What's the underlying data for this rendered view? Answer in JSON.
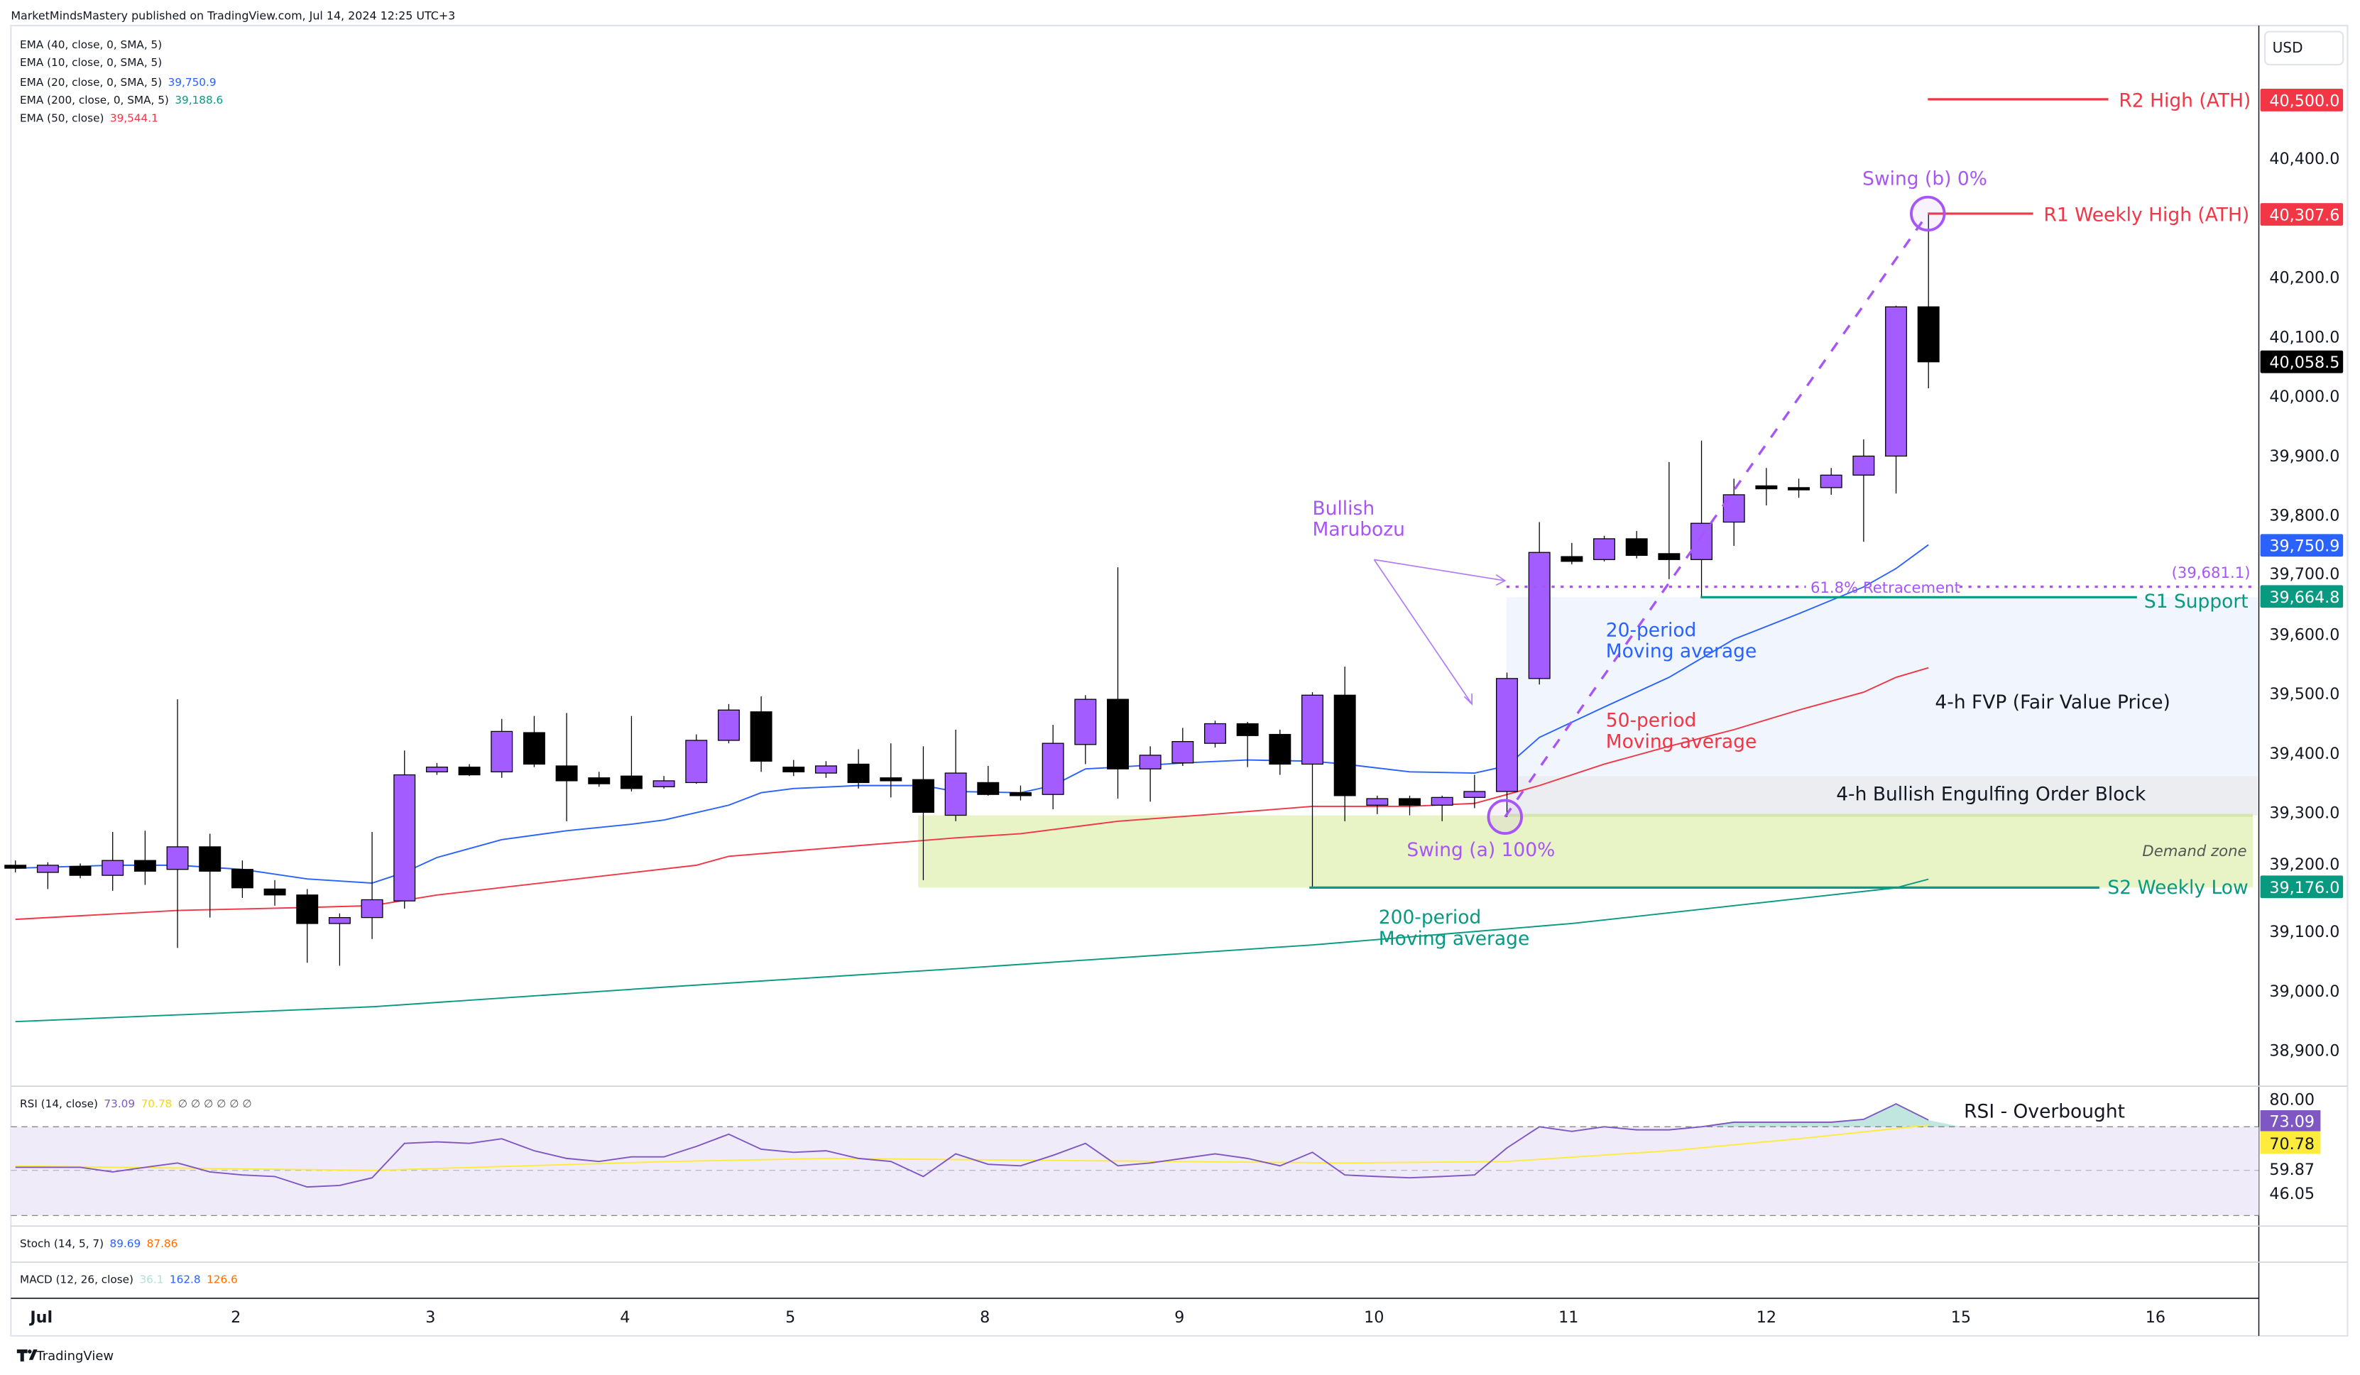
{
  "header": {
    "published": "MarketMindsMastery published on TradingView.com, Jul 14, 2024 12:25 UTC+3"
  },
  "legend": {
    "ema40": "EMA (40, close, 0, SMA, 5)",
    "ema10": "EMA (10, close, 0, SMA, 5)",
    "ema20": "EMA (20, close, 0, SMA, 5)",
    "ema20_value": "39,750.9",
    "ema200": "EMA (200, close, 0, SMA, 5)",
    "ema200_value": "39,188.6",
    "ema50": "EMA (50, close)",
    "ema50_value": "39,544.1"
  },
  "colors": {
    "up": "#a25cff",
    "down": "#000000",
    "ema20": "#2962ff",
    "ema50": "#f23645",
    "ema200": "#089981",
    "annotation": "#a855f7",
    "rsi": "#7e57c2",
    "rsi_ma": "#ffeb3b"
  },
  "price_axis": {
    "currency": "USD",
    "ticks": [
      "40,400.0",
      "40,200.0",
      "40,100.0",
      "40,000.0",
      "39,900.0",
      "39,800.0",
      "39,700.0",
      "39,600.0",
      "39,500.0",
      "39,400.0",
      "39,300.0",
      "39,200.0",
      "39,100.0",
      "39,000.0",
      "38,900.0"
    ],
    "tags": {
      "r2": "40,500.0",
      "r1": "40,307.6",
      "last": "40,058.5",
      "ema20": "39,750.9",
      "s1": "39,664.8",
      "s2": "39,176.0"
    }
  },
  "annotations": {
    "r2": "R2 High (ATH)",
    "r1": "R1 Weekly High (ATH)",
    "swing_b": "Swing (b) 0%",
    "swing_a": "Swing (a) 100%",
    "retracement": "61.8% Retracement",
    "retracement_value": "(39,681.1)",
    "s1": "S1 Support",
    "fvp": "4-h FVP (Fair Value Price)",
    "order_block": "4-h Bullish Engulfing Order Block",
    "demand_zone": "Demand zone",
    "s2": "S2 Weekly Low",
    "marubozu_1": "Bullish",
    "marubozu_2": "Marubozu",
    "ma20_1": "20-period",
    "ma20_2": "Moving average",
    "ma50_1": "50-period",
    "ma50_2": "Moving average",
    "ma200_1": "200-period",
    "ma200_2": "Moving average",
    "rsi_overbought": "RSI - Overbought"
  },
  "rsi_pane": {
    "label": "RSI (14, close)",
    "value": "73.09",
    "ma_value": "70.78",
    "extra": "∅ ∅ ∅ ∅ ∅ ∅",
    "axis": [
      "80.00",
      "59.87",
      "46.05"
    ],
    "tag_rsi": "73.09",
    "tag_ma": "70.78"
  },
  "stoch_pane": {
    "label": "Stoch (14, 5, 7)",
    "k": "89.69",
    "d": "87.86"
  },
  "macd_pane": {
    "label": "MACD (12, 26, close)",
    "hist": "36.1",
    "macd": "162.8",
    "signal": "126.6"
  },
  "footer": {
    "brand": "TradingView"
  },
  "chart_data": {
    "type": "candlestick",
    "title": "",
    "ylim": [
      38850,
      40560
    ],
    "time_ticks": [
      {
        "label": "Jul",
        "index": 0.8
      },
      {
        "label": "2",
        "index": 6.8
      },
      {
        "label": "3",
        "index": 12.8
      },
      {
        "label": "4",
        "index": 18.8
      },
      {
        "label": "5",
        "index": 23.9
      },
      {
        "label": "8",
        "index": 29.9
      },
      {
        "label": "9",
        "index": 35.9
      },
      {
        "label": "10",
        "index": 41.9
      },
      {
        "label": "11",
        "index": 47.9
      },
      {
        "label": "12",
        "index": 54.0
      },
      {
        "label": "15",
        "index": 60.0
      },
      {
        "label": "16",
        "index": 66.0
      }
    ],
    "candles_ohlc": [
      [
        39212,
        39220,
        39200,
        39207
      ],
      [
        39200,
        39217,
        39172,
        39212
      ],
      [
        39210,
        39215,
        39190,
        39195
      ],
      [
        39195,
        39268,
        39169,
        39220
      ],
      [
        39220,
        39270,
        39179,
        39202
      ],
      [
        39205,
        39491,
        39073,
        39243
      ],
      [
        39243,
        39265,
        39124,
        39202
      ],
      [
        39205,
        39220,
        39157,
        39174
      ],
      [
        39172,
        39187,
        39144,
        39162
      ],
      [
        39162,
        39172,
        39048,
        39114
      ],
      [
        39114,
        39131,
        39043,
        39124
      ],
      [
        39124,
        39268,
        39088,
        39154
      ],
      [
        39152,
        39405,
        39139,
        39364
      ],
      [
        39369,
        39384,
        39364,
        39377
      ],
      [
        39377,
        39382,
        39362,
        39364
      ],
      [
        39369,
        39458,
        39359,
        39437
      ],
      [
        39435,
        39463,
        39377,
        39382
      ],
      [
        39379,
        39468,
        39286,
        39354
      ],
      [
        39359,
        39369,
        39344,
        39349
      ],
      [
        39362,
        39463,
        39336,
        39341
      ],
      [
        39344,
        39362,
        39341,
        39354
      ],
      [
        39351,
        39432,
        39349,
        39422
      ],
      [
        39422,
        39483,
        39417,
        39473
      ],
      [
        39470,
        39496,
        39369,
        39387
      ],
      [
        39377,
        39389,
        39362,
        39369
      ],
      [
        39367,
        39387,
        39359,
        39379
      ],
      [
        39382,
        39407,
        39341,
        39351
      ],
      [
        39359,
        39417,
        39326,
        39354
      ],
      [
        39356,
        39412,
        39187,
        39301
      ],
      [
        39296,
        39440,
        39286,
        39367
      ],
      [
        39351,
        39379,
        39329,
        39331
      ],
      [
        39334,
        39346,
        39321,
        39329
      ],
      [
        39331,
        39448,
        39306,
        39417
      ],
      [
        39415,
        39498,
        39382,
        39491
      ],
      [
        39491,
        39713,
        39324,
        39374
      ],
      [
        39374,
        39412,
        39319,
        39397
      ],
      [
        39384,
        39443,
        39379,
        39420
      ],
      [
        39417,
        39455,
        39410,
        39450
      ],
      [
        39450,
        39453,
        39377,
        39430
      ],
      [
        39432,
        39440,
        39364,
        39382
      ],
      [
        39382,
        39503,
        39174,
        39498
      ],
      [
        39498,
        39546,
        39286,
        39329
      ],
      [
        39313,
        39329,
        39298,
        39324
      ],
      [
        39324,
        39329,
        39296,
        39313
      ],
      [
        39313,
        39329,
        39286,
        39326
      ],
      [
        39326,
        39364,
        39308,
        39336
      ],
      [
        39336,
        39536,
        39293,
        39526
      ],
      [
        39526,
        39789,
        39516,
        39738
      ],
      [
        39731,
        39754,
        39718,
        39723
      ],
      [
        39726,
        39766,
        39723,
        39761
      ],
      [
        39761,
        39774,
        39728,
        39733
      ],
      [
        39736,
        39890,
        39693,
        39726
      ],
      [
        39726,
        39926,
        39663,
        39787
      ],
      [
        39789,
        39862,
        39749,
        39835
      ],
      [
        39850,
        39880,
        39817,
        39845
      ],
      [
        39847,
        39862,
        39830,
        39845
      ],
      [
        39847,
        39880,
        39835,
        39868
      ],
      [
        39868,
        39928,
        39756,
        39900
      ],
      [
        39900,
        40153,
        39837,
        40151
      ],
      [
        40151,
        40307.6,
        40014,
        40058.5
      ]
    ],
    "series": [
      {
        "name": "EMA 20",
        "points": [
          [
            0,
            39207
          ],
          [
            3,
            39212
          ],
          [
            5,
            39212
          ],
          [
            7,
            39205
          ],
          [
            9,
            39189
          ],
          [
            11,
            39182
          ],
          [
            12,
            39200
          ],
          [
            13,
            39225
          ],
          [
            15,
            39255
          ],
          [
            17,
            39270
          ],
          [
            19,
            39281
          ],
          [
            20,
            39288
          ],
          [
            22,
            39313
          ],
          [
            23,
            39334
          ],
          [
            24,
            39341
          ],
          [
            26,
            39346
          ],
          [
            28,
            39346
          ],
          [
            29,
            39336
          ],
          [
            31,
            39334
          ],
          [
            32,
            39346
          ],
          [
            33,
            39374
          ],
          [
            34,
            39377
          ],
          [
            36,
            39384
          ],
          [
            38,
            39389
          ],
          [
            40,
            39387
          ],
          [
            41,
            39382
          ],
          [
            43,
            39369
          ],
          [
            45,
            39367
          ],
          [
            46,
            39379
          ],
          [
            47,
            39427
          ],
          [
            49,
            39478
          ],
          [
            51,
            39528
          ],
          [
            53,
            39592
          ],
          [
            55,
            39635
          ],
          [
            57,
            39680
          ],
          [
            58,
            39711
          ],
          [
            59,
            39750.9
          ]
        ]
      },
      {
        "name": "EMA 50",
        "points": [
          [
            0,
            39121
          ],
          [
            5,
            39136
          ],
          [
            9,
            39141
          ],
          [
            11,
            39144
          ],
          [
            13,
            39162
          ],
          [
            17,
            39187
          ],
          [
            21,
            39212
          ],
          [
            22,
            39227
          ],
          [
            26,
            39245
          ],
          [
            29,
            39258
          ],
          [
            31,
            39265
          ],
          [
            34,
            39286
          ],
          [
            37,
            39298
          ],
          [
            40,
            39311
          ],
          [
            43,
            39311
          ],
          [
            45,
            39316
          ],
          [
            47,
            39346
          ],
          [
            49,
            39382
          ],
          [
            51,
            39412
          ],
          [
            53,
            39440
          ],
          [
            55,
            39473
          ],
          [
            57,
            39503
          ],
          [
            58,
            39528
          ],
          [
            59,
            39544.1
          ]
        ]
      },
      {
        "name": "EMA 200",
        "points": [
          [
            0,
            38949
          ],
          [
            11,
            38974
          ],
          [
            20,
            39007
          ],
          [
            29,
            39038
          ],
          [
            40,
            39078
          ],
          [
            48,
            39114
          ],
          [
            53,
            39144
          ],
          [
            58,
            39174
          ],
          [
            59,
            39188.6
          ]
        ]
      }
    ],
    "rsi": [
      51.4,
      51.4,
      51.4,
      49.3,
      51.4,
      53.4,
      49.3,
      47.9,
      47.2,
      42.4,
      43.1,
      46.6,
      62.4,
      63.1,
      62.4,
      64.5,
      59.0,
      55.5,
      54.1,
      56.2,
      56.2,
      61.0,
      66.6,
      59.7,
      58.3,
      59.0,
      55.5,
      54.1,
      47.2,
      57.6,
      52.8,
      52.1,
      56.9,
      62.4,
      52.1,
      53.4,
      55.5,
      57.6,
      55.5,
      52.1,
      58.3,
      47.9,
      47.2,
      46.6,
      47.2,
      47.9,
      60.3,
      70.0,
      67.9,
      70.0,
      68.6,
      68.6,
      70.0,
      72.1,
      72.1,
      72.1,
      72.1,
      73.4,
      80.5,
      73.09
    ],
    "rsi_ma": [
      [
        0,
        52
      ],
      [
        11,
        50
      ],
      [
        20,
        54
      ],
      [
        25,
        55.5
      ],
      [
        41,
        53.4
      ],
      [
        46,
        54.1
      ],
      [
        51,
        59
      ],
      [
        55,
        64.5
      ],
      [
        59,
        70.78
      ]
    ],
    "rsi_bands": [
      70,
      50,
      30
    ]
  }
}
